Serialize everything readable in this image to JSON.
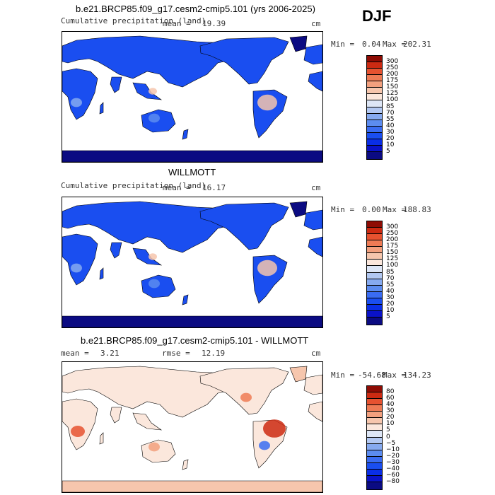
{
  "season": "DJF",
  "colors": {
    "precip_scale": [
      "#0b0b82",
      "#0a12c8",
      "#0a2ee6",
      "#1a4ef0",
      "#3a6cf2",
      "#5c8cf0",
      "#86aaf0",
      "#b2c8f2",
      "#dde6f6",
      "#fbe7dc",
      "#f6c6ad",
      "#f2a07e",
      "#ee7b55",
      "#e65230",
      "#cc2a12",
      "#8e0c04"
    ],
    "diff_scale": [
      "#0b0b82",
      "#0a12c8",
      "#0a2ee6",
      "#1a4ef0",
      "#3a6cf2",
      "#5c8cf0",
      "#86aaf0",
      "#b2c8f2",
      "#dde6f6",
      "#fbe7dc",
      "#f6c6ad",
      "#f2a07e",
      "#ee7b55",
      "#e65230",
      "#cc2a12",
      "#8e0c04"
    ],
    "ocean": "#ffffff",
    "coast": "#000000"
  },
  "chart_data": [
    {
      "type": "heatmap",
      "title": "b.e21.BRCP85.f09_g17.cesm2-cmip5.101 (yrs 2006-2025)",
      "subtitle": "Cumulative precipitation (land)",
      "mean_label": "mean =",
      "mean_value": "19.39",
      "units": "cm",
      "min_label": "Min =",
      "min_value": "0.04",
      "max_label": "Max =",
      "max_value": "202.31",
      "colorbar_labels": [
        "300",
        "250",
        "200",
        "175",
        "150",
        "125",
        "100",
        "85",
        "70",
        "55",
        "40",
        "30",
        "20",
        "10",
        "5"
      ]
    },
    {
      "type": "heatmap",
      "title": "WILLMOTT",
      "subtitle": "Cumulative precipitation (land)",
      "mean_label": "mean =",
      "mean_value": "16.17",
      "units": "cm",
      "min_label": "Min =",
      "min_value": "0.00",
      "max_label": "Max =",
      "max_value": "188.83",
      "colorbar_labels": [
        "300",
        "250",
        "200",
        "175",
        "150",
        "125",
        "100",
        "85",
        "70",
        "55",
        "40",
        "30",
        "20",
        "10",
        "5"
      ]
    },
    {
      "type": "heatmap",
      "title": "b.e21.BRCP85.f09_g17.cesm2-cmip5.101 - WILLMOTT",
      "mean_label": "mean =",
      "mean_value": "3.21",
      "rmse_label": "rmse =",
      "rmse_value": "12.19",
      "units": "cm",
      "min_label": "Min =",
      "min_value": "-54.68",
      "max_label": "Max =",
      "max_value": "134.23",
      "colorbar_labels": [
        "80",
        "60",
        "40",
        "30",
        "20",
        "10",
        "5",
        "0",
        "−5",
        "−10",
        "−20",
        "−30",
        "−40",
        "−60",
        "−80"
      ]
    }
  ]
}
